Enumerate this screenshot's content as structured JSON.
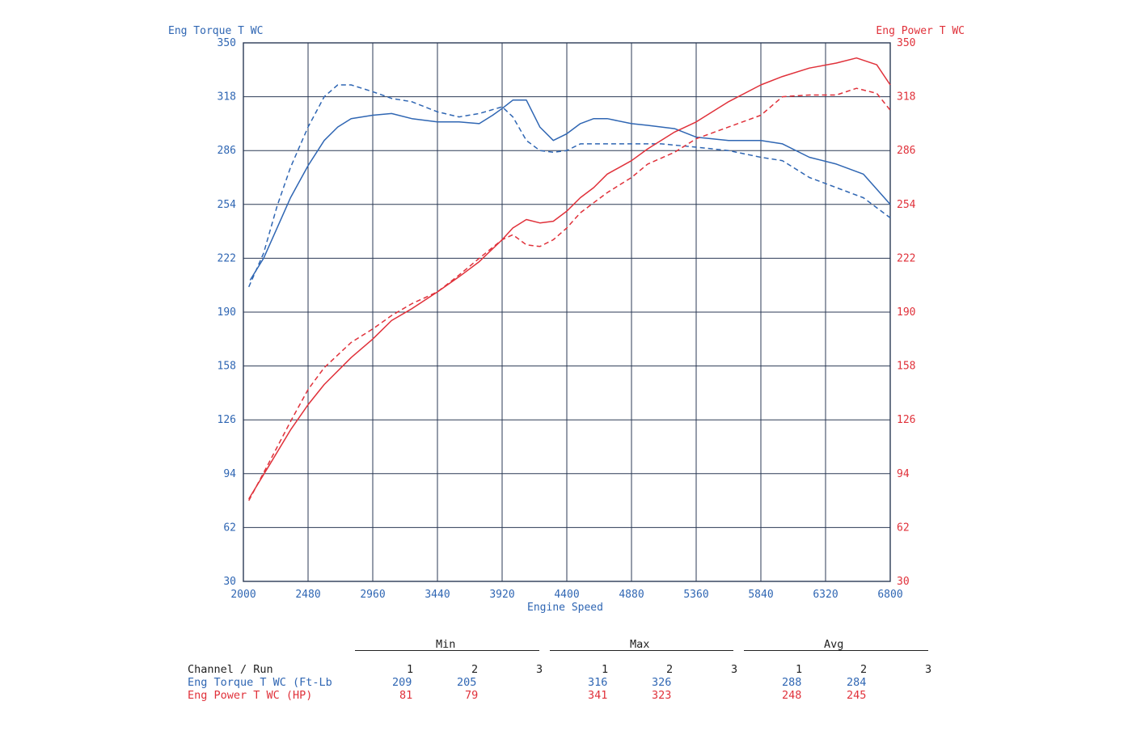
{
  "chart_data": {
    "type": "line",
    "left_axis_title": "Eng Torque T WC",
    "right_axis_title": "Eng Power T WC",
    "xlabel": "Engine Speed",
    "xlim": [
      2000,
      6800
    ],
    "x_ticks": [
      "2000",
      "2480",
      "2960",
      "3440",
      "3920",
      "4400",
      "4880",
      "5360",
      "5840",
      "6320",
      "6800"
    ],
    "ylim": [
      30,
      350
    ],
    "y_ticks": [
      "350",
      "318",
      "286",
      "254",
      "222",
      "190",
      "158",
      "126",
      "94",
      "62",
      "30"
    ],
    "grid": true,
    "colors": {
      "torque": "#2f66b3",
      "power": "#e0313a",
      "grid": "#2b3a55"
    },
    "series": [
      {
        "name": "Eng Torque T WC",
        "run": "1",
        "style": "solid",
        "axis": "left",
        "x": [
          2050,
          2150,
          2250,
          2350,
          2480,
          2600,
          2700,
          2800,
          2960,
          3100,
          3250,
          3440,
          3600,
          3750,
          3850,
          3920,
          4000,
          4100,
          4200,
          4300,
          4400,
          4500,
          4600,
          4700,
          4880,
          5000,
          5200,
          5360,
          5600,
          5840,
          6000,
          6200,
          6400,
          6600,
          6800
        ],
        "y": [
          209,
          222,
          240,
          258,
          277,
          292,
          300,
          305,
          307,
          308,
          305,
          303,
          303,
          302,
          307,
          311,
          316,
          316,
          300,
          292,
          296,
          302,
          305,
          305,
          302,
          301,
          299,
          294,
          292,
          292,
          290,
          282,
          278,
          272,
          254
        ]
      },
      {
        "name": "Eng Torque T WC",
        "run": "2",
        "style": "dashed",
        "axis": "left",
        "x": [
          2040,
          2150,
          2250,
          2350,
          2480,
          2600,
          2700,
          2800,
          2960,
          3100,
          3250,
          3440,
          3600,
          3750,
          3920,
          4000,
          4100,
          4200,
          4300,
          4400,
          4500,
          4600,
          4700,
          4880,
          5100,
          5360,
          5600,
          5840,
          6000,
          6200,
          6400,
          6600,
          6800
        ],
        "y": [
          205,
          225,
          253,
          276,
          300,
          318,
          325,
          325,
          321,
          317,
          315,
          309,
          306,
          308,
          312,
          306,
          292,
          286,
          285,
          286,
          290,
          290,
          290,
          290,
          290,
          288,
          286,
          282,
          280,
          270,
          264,
          258,
          246
        ]
      },
      {
        "name": "Eng Power T WC",
        "run": "1",
        "style": "solid",
        "axis": "right",
        "x": [
          2040,
          2200,
          2350,
          2480,
          2600,
          2800,
          2960,
          3100,
          3250,
          3440,
          3600,
          3750,
          3920,
          4000,
          4100,
          4200,
          4300,
          4400,
          4500,
          4600,
          4700,
          4880,
          5000,
          5200,
          5360,
          5600,
          5840,
          6000,
          6200,
          6400,
          6550,
          6700,
          6800
        ],
        "y": [
          79,
          100,
          120,
          135,
          147,
          163,
          174,
          185,
          192,
          202,
          211,
          220,
          233,
          240,
          245,
          243,
          244,
          250,
          258,
          264,
          272,
          280,
          287,
          297,
          303,
          315,
          325,
          330,
          335,
          338,
          341,
          337,
          325
        ]
      },
      {
        "name": "Eng Power T WC",
        "run": "2",
        "style": "dashed",
        "axis": "right",
        "x": [
          2040,
          2200,
          2350,
          2480,
          2600,
          2800,
          2960,
          3100,
          3250,
          3440,
          3600,
          3750,
          3920,
          4000,
          4100,
          4200,
          4300,
          4400,
          4500,
          4600,
          4700,
          4880,
          5000,
          5200,
          5360,
          5600,
          5840,
          6000,
          6200,
          6400,
          6550,
          6700,
          6800
        ],
        "y": [
          78,
          102,
          125,
          144,
          157,
          172,
          180,
          188,
          195,
          202,
          212,
          222,
          233,
          236,
          230,
          229,
          233,
          240,
          249,
          255,
          261,
          270,
          278,
          285,
          293,
          300,
          307,
          318,
          319,
          319,
          323,
          320,
          310
        ]
      }
    ]
  },
  "summary_table": {
    "channel_header": "Channel / Run",
    "group_labels": [
      "Min",
      "Max",
      "Avg"
    ],
    "run_labels": [
      "1",
      "2",
      "3"
    ],
    "rows": [
      {
        "label": "Eng Torque T WC (Ft-Lb",
        "min": [
          "209",
          "205",
          ""
        ],
        "max": [
          "316",
          "326",
          ""
        ],
        "avg": [
          "288",
          "284",
          ""
        ]
      },
      {
        "label": "Eng Power T WC (HP)",
        "min": [
          "81",
          "79",
          ""
        ],
        "max": [
          "341",
          "323",
          ""
        ],
        "avg": [
          "248",
          "245",
          ""
        ]
      }
    ]
  }
}
